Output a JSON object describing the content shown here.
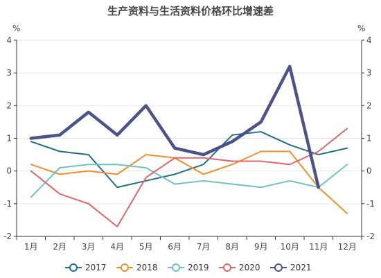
{
  "chart_data": {
    "type": "line",
    "title": "生产资料与生活资料价格环比增速差",
    "y_unit_left": "%",
    "y_unit_right": "%",
    "categories": [
      "1月",
      "2月",
      "3月",
      "4月",
      "5月",
      "6月",
      "7月",
      "8月",
      "9月",
      "10月",
      "11月",
      "12月"
    ],
    "ylim": [
      -2,
      4
    ],
    "yticks": [
      -2,
      -1,
      0,
      1,
      2,
      3,
      4
    ],
    "grid": true,
    "legend_position": "bottom",
    "series": [
      {
        "name": "2017",
        "color": "#1f6f8b",
        "values": [
          0.9,
          0.6,
          0.5,
          -0.5,
          -0.3,
          -0.1,
          0.2,
          1.1,
          1.2,
          0.8,
          0.5,
          0.7
        ]
      },
      {
        "name": "2018",
        "color": "#f28e2b",
        "values": [
          0.2,
          -0.1,
          0.0,
          -0.1,
          0.5,
          0.4,
          -0.1,
          0.2,
          0.6,
          0.6,
          -0.5,
          -1.3
        ]
      },
      {
        "name": "2019",
        "color": "#6cc3c1",
        "values": [
          -0.8,
          0.1,
          0.2,
          0.2,
          0.1,
          -0.4,
          -0.3,
          -0.4,
          -0.5,
          -0.3,
          -0.5,
          0.2
        ]
      },
      {
        "name": "2020",
        "color": "#e06666",
        "values": [
          0.0,
          -0.7,
          -1.0,
          -1.7,
          -0.2,
          0.4,
          0.4,
          0.3,
          0.3,
          0.2,
          0.6,
          1.3
        ]
      },
      {
        "name": "2021",
        "color": "#4a5489",
        "values": [
          1.0,
          1.1,
          1.8,
          1.1,
          2.0,
          0.7,
          0.5,
          0.9,
          1.5,
          3.2,
          -0.5,
          null
        ]
      }
    ]
  }
}
